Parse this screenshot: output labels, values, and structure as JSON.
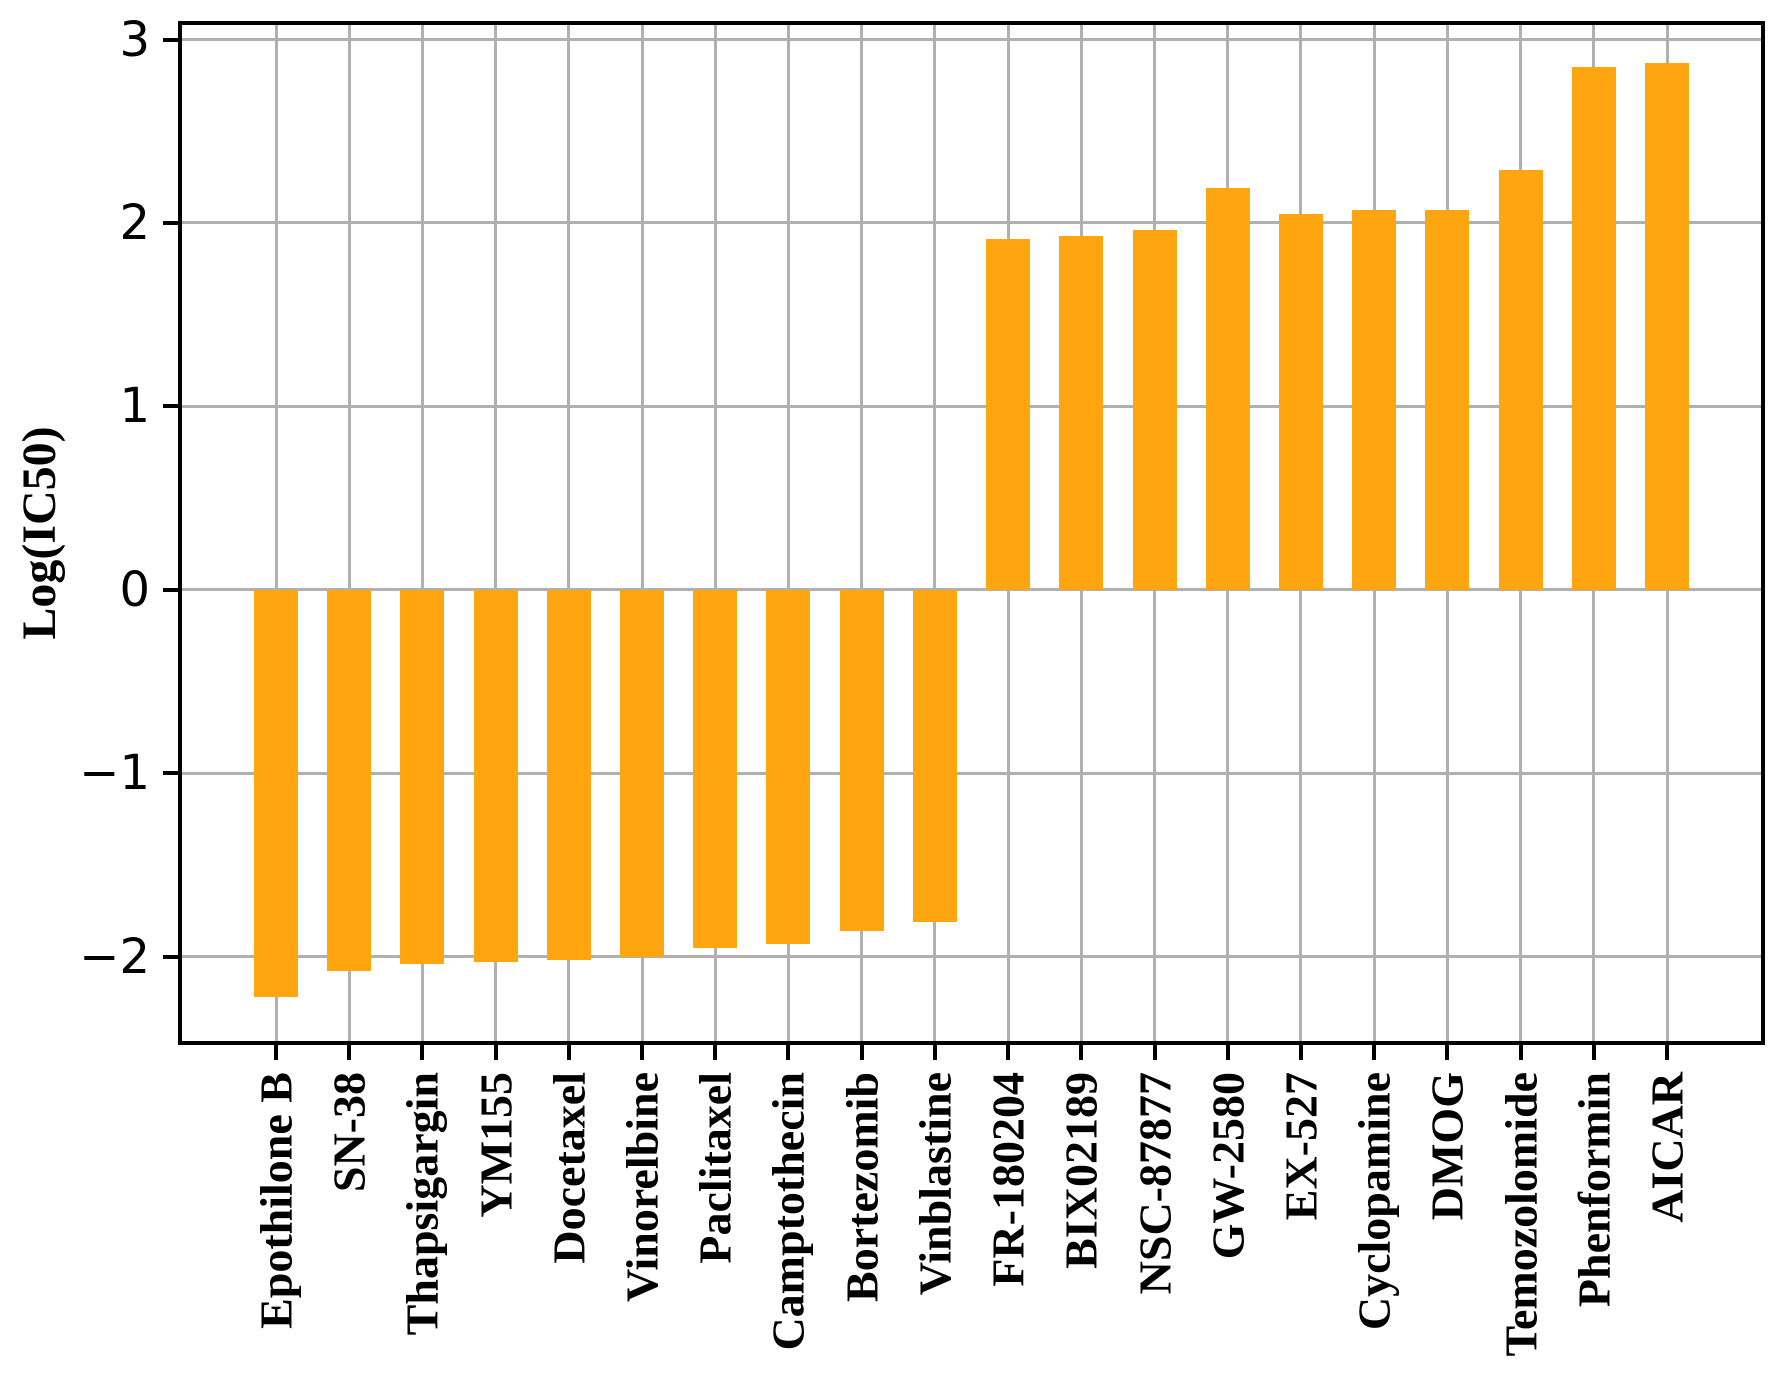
{
  "chart_data": {
    "type": "bar",
    "title": "",
    "xlabel": "",
    "ylabel": "Log(IC50)",
    "categories": [
      "Epothilone B",
      "SN-38",
      "Thapsigargin",
      "YM155",
      "Docetaxel",
      "Vinorelbine",
      "Paclitaxel",
      "Camptothecin",
      "Bortezomib",
      "Vinblastine",
      "FR-180204",
      "BIX02189",
      "NSC-87877",
      "GW-2580",
      "EX-527",
      "Cyclopamine",
      "DMOG",
      "Temozolomide",
      "Phenformin",
      "AICAR"
    ],
    "values": [
      -2.22,
      -2.08,
      -2.04,
      -2.03,
      -2.02,
      -2.0,
      -1.95,
      -1.93,
      -1.86,
      -1.81,
      1.91,
      1.93,
      1.96,
      2.19,
      2.05,
      2.07,
      2.07,
      2.29,
      2.85,
      2.87
    ],
    "yticks": [
      3,
      2,
      1,
      0,
      -1,
      -2
    ],
    "ytick_labels": [
      "3",
      "2",
      "1",
      "0",
      "−1",
      "−2"
    ],
    "ylim": [
      -2.47,
      3.09
    ],
    "grid": true,
    "legend": null,
    "bar_color": "#FFA510",
    "grid_color": "#B0B0B0",
    "axis_color": "#000000",
    "background_color": "#FFFFFF"
  }
}
